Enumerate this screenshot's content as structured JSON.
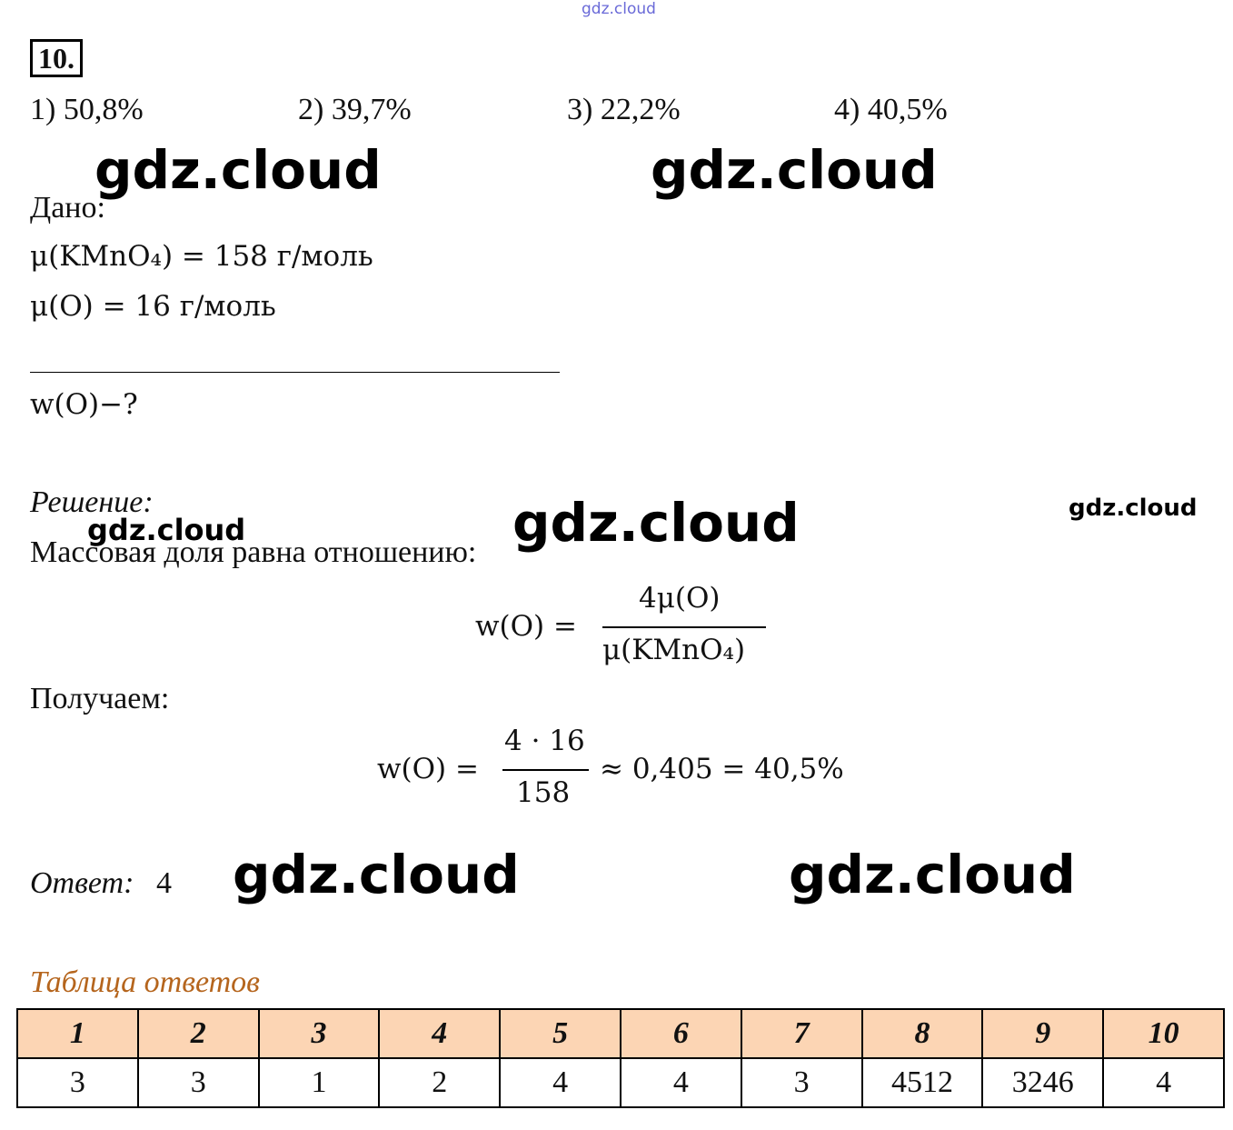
{
  "watermarks": [
    "gdz.cloud",
    "gdz.cloud",
    "gdz.cloud",
    "gdz.cloud",
    "gdz.cloud",
    "gdz.cloud",
    "gdz.cloud",
    "gdz.cloud"
  ],
  "problem_number": "10.",
  "options": [
    "1) 50,8%",
    "2) 39,7%",
    "3) 22,2%",
    "4) 40,5%"
  ],
  "given": {
    "label": "Дано:",
    "lines": [
      "μ(KMnO₄) = 158 г/моль",
      "μ(O) = 16 г/моль"
    ]
  },
  "find": "w(O)−?",
  "solution": {
    "label": "Решение:",
    "text": "Массовая доля равна отношению:",
    "formula": {
      "left": "w(O) =",
      "numerator": "4μ(O)",
      "denominator": "μ(KMnO₄)"
    },
    "result_label": "Получаем:",
    "calculation": {
      "left": "w(O) =",
      "numerator": "4 · 16",
      "denominator": "158",
      "right": "≈ 0,405 = 40,5%"
    }
  },
  "answer": {
    "label": "Ответ:",
    "value": "4"
  },
  "table": {
    "title": "Таблица ответов",
    "header": [
      "1",
      "2",
      "3",
      "4",
      "5",
      "6",
      "7",
      "8",
      "9",
      "10"
    ],
    "rows": [
      [
        "3",
        "3",
        "1",
        "2",
        "4",
        "4",
        "3",
        "4512",
        "3246",
        "4"
      ]
    ]
  }
}
